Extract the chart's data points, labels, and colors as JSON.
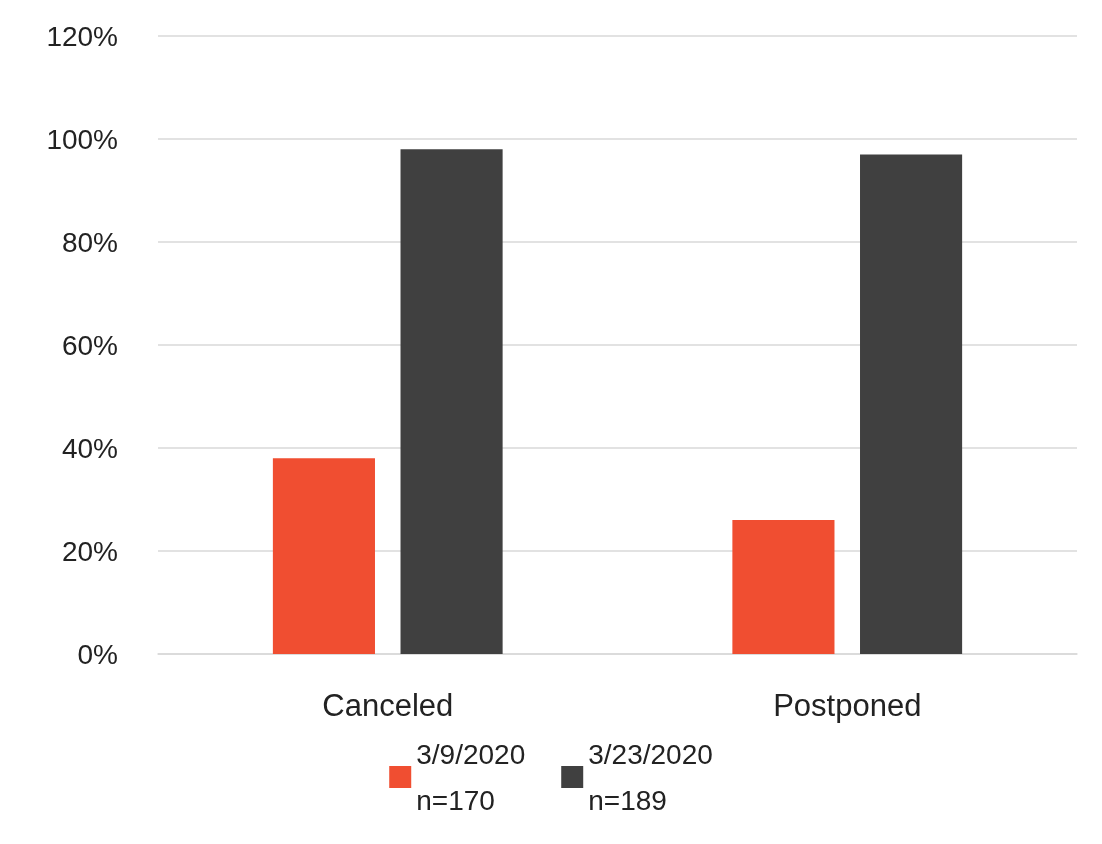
{
  "chart_data": {
    "type": "bar",
    "categories": [
      "Canceled",
      "Postponed"
    ],
    "series": [
      {
        "name": "3/9/2020\nn=170",
        "color": "#f04e31",
        "values": [
          38,
          26
        ]
      },
      {
        "name": "3/23/2020\nn=189",
        "color": "#404040",
        "values": [
          98,
          97
        ]
      }
    ],
    "ylim": [
      0,
      120
    ],
    "yticks": [
      {
        "value": 0,
        "label": "0%"
      },
      {
        "value": 20,
        "label": "20%"
      },
      {
        "value": 40,
        "label": "40%"
      },
      {
        "value": 60,
        "label": "60%"
      },
      {
        "value": 80,
        "label": "80%"
      },
      {
        "value": 100,
        "label": "100%"
      },
      {
        "value": 120,
        "label": "120%"
      }
    ],
    "grid": "y",
    "legend": "bottom"
  }
}
